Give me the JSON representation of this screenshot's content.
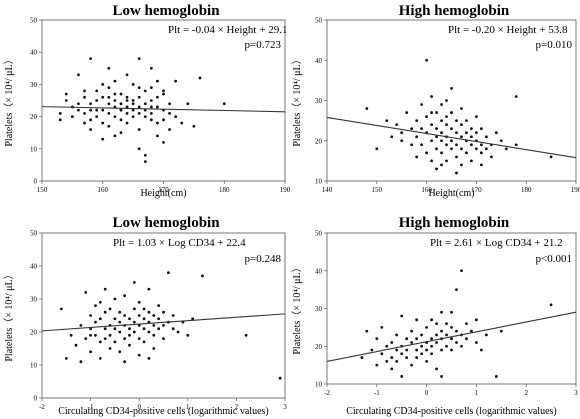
{
  "chart_data": [
    {
      "type": "scatter",
      "title": "Low hemoglobin",
      "xlabel": "Height(cm)",
      "ylabel": "Platelets（× 10⁴/ μL）",
      "xlim": [
        150,
        190
      ],
      "ylim": [
        0,
        50
      ],
      "xticks": [
        150,
        160,
        170,
        180,
        190
      ],
      "yticks": [
        0,
        10,
        20,
        30,
        40,
        50
      ],
      "equation": "Plt = -0.04 × Height + 29.1",
      "pvalue": "p=0.723",
      "regression": {
        "slope": -0.04,
        "intercept": 29.1
      },
      "points": [
        [
          153,
          19
        ],
        [
          153,
          21
        ],
        [
          154,
          27
        ],
        [
          154,
          25
        ],
        [
          155,
          23
        ],
        [
          155,
          20
        ],
        [
          156,
          22
        ],
        [
          156,
          24
        ],
        [
          156,
          33
        ],
        [
          157,
          28
        ],
        [
          157,
          21
        ],
        [
          157,
          26
        ],
        [
          158,
          38
        ],
        [
          158,
          24
        ],
        [
          158,
          19
        ],
        [
          158,
          16
        ],
        [
          159,
          25
        ],
        [
          159,
          22
        ],
        [
          159,
          20
        ],
        [
          159,
          28
        ],
        [
          160,
          30
        ],
        [
          160,
          22
        ],
        [
          160,
          18
        ],
        [
          160,
          13
        ],
        [
          161,
          24
        ],
        [
          161,
          21
        ],
        [
          161,
          26
        ],
        [
          161,
          17
        ],
        [
          161,
          29
        ],
        [
          162,
          23
        ],
        [
          162,
          20
        ],
        [
          162,
          25
        ],
        [
          162,
          31
        ],
        [
          162,
          14
        ],
        [
          163,
          22
        ],
        [
          163,
          19
        ],
        [
          163,
          27
        ],
        [
          163,
          24
        ],
        [
          163,
          15
        ],
        [
          164,
          21
        ],
        [
          164,
          26
        ],
        [
          164,
          23
        ],
        [
          164,
          18
        ],
        [
          164,
          33
        ],
        [
          165,
          25
        ],
        [
          165,
          22
        ],
        [
          165,
          20
        ],
        [
          165,
          30
        ],
        [
          165,
          24
        ],
        [
          166,
          38
        ],
        [
          166,
          23
        ],
        [
          166,
          21
        ],
        [
          166,
          26
        ],
        [
          166,
          16
        ],
        [
          166,
          10
        ],
        [
          167,
          24
        ],
        [
          167,
          20
        ],
        [
          167,
          28
        ],
        [
          167,
          22
        ],
        [
          167,
          8
        ],
        [
          167,
          6
        ],
        [
          168,
          25
        ],
        [
          168,
          21
        ],
        [
          168,
          19
        ],
        [
          168,
          29
        ],
        [
          168,
          35
        ],
        [
          169,
          23
        ],
        [
          169,
          18
        ],
        [
          169,
          26
        ],
        [
          169,
          14
        ],
        [
          170,
          22
        ],
        [
          170,
          12
        ],
        [
          170,
          27
        ],
        [
          170,
          19
        ],
        [
          171,
          21
        ],
        [
          171,
          24
        ],
        [
          171,
          16
        ],
        [
          172,
          31
        ],
        [
          172,
          20
        ],
        [
          173,
          18
        ],
        [
          174,
          24
        ],
        [
          175,
          17
        ],
        [
          176,
          32
        ],
        [
          180,
          24
        ],
        [
          161,
          35
        ],
        [
          163,
          22
        ],
        [
          164,
          25
        ],
        [
          162,
          27
        ],
        [
          166,
          29
        ],
        [
          168,
          23
        ],
        [
          169,
          31
        ],
        [
          170,
          28
        ],
        [
          160,
          26
        ],
        [
          158,
          22
        ],
        [
          157,
          18
        ]
      ]
    },
    {
      "type": "scatter",
      "title": "High hemoglobin",
      "xlabel": "Height(cm)",
      "ylabel": "Platelets（× 10⁴/ μL）",
      "xlim": [
        140,
        190
      ],
      "ylim": [
        10,
        50
      ],
      "xticks": [
        140,
        150,
        160,
        170,
        180,
        190
      ],
      "yticks": [
        10,
        20,
        30,
        40,
        50
      ],
      "equation": "Plt = -0.20 × Height + 53.8",
      "pvalue": "p=0.010",
      "regression": {
        "slope": -0.2,
        "intercept": 53.8
      },
      "points": [
        [
          148,
          28
        ],
        [
          150,
          18
        ],
        [
          152,
          25
        ],
        [
          153,
          21
        ],
        [
          154,
          24
        ],
        [
          155,
          22
        ],
        [
          155,
          20
        ],
        [
          156,
          27
        ],
        [
          157,
          23
        ],
        [
          157,
          19
        ],
        [
          158,
          25
        ],
        [
          158,
          21
        ],
        [
          158,
          16
        ],
        [
          159,
          29
        ],
        [
          159,
          23
        ],
        [
          159,
          19
        ],
        [
          160,
          26
        ],
        [
          160,
          22
        ],
        [
          160,
          40
        ],
        [
          160,
          17
        ],
        [
          161,
          24
        ],
        [
          161,
          20
        ],
        [
          161,
          31
        ],
        [
          161,
          15
        ],
        [
          162,
          23
        ],
        [
          162,
          21
        ],
        [
          162,
          27
        ],
        [
          162,
          18
        ],
        [
          162,
          13
        ],
        [
          163,
          25
        ],
        [
          163,
          22
        ],
        [
          163,
          20
        ],
        [
          163,
          17
        ],
        [
          163,
          29
        ],
        [
          164,
          24
        ],
        [
          164,
          21
        ],
        [
          164,
          19
        ],
        [
          164,
          26
        ],
        [
          164,
          15
        ],
        [
          165,
          23
        ],
        [
          165,
          20
        ],
        [
          165,
          33
        ],
        [
          165,
          18
        ],
        [
          165,
          27
        ],
        [
          166,
          22
        ],
        [
          166,
          25
        ],
        [
          166,
          19
        ],
        [
          166,
          16
        ],
        [
          166,
          12
        ],
        [
          167,
          21
        ],
        [
          167,
          24
        ],
        [
          167,
          18
        ],
        [
          167,
          28
        ],
        [
          167,
          14
        ],
        [
          168,
          22
        ],
        [
          168,
          20
        ],
        [
          168,
          17
        ],
        [
          168,
          25
        ],
        [
          169,
          21
        ],
        [
          169,
          19
        ],
        [
          169,
          23
        ],
        [
          169,
          15
        ],
        [
          170,
          22
        ],
        [
          170,
          18
        ],
        [
          170,
          20
        ],
        [
          170,
          26
        ],
        [
          171,
          19
        ],
        [
          171,
          17
        ],
        [
          171,
          23
        ],
        [
          171,
          14
        ],
        [
          172,
          21
        ],
        [
          172,
          18
        ],
        [
          173,
          19
        ],
        [
          173,
          16
        ],
        [
          174,
          22
        ],
        [
          175,
          20
        ],
        [
          176,
          18
        ],
        [
          178,
          19
        ],
        [
          178,
          31
        ],
        [
          185,
          16
        ],
        [
          164,
          30
        ],
        [
          163,
          14
        ],
        [
          161,
          27
        ]
      ]
    },
    {
      "type": "scatter",
      "title": "Low hemoglobin",
      "xlabel": "Circulating CD34-positive cells (logarithmic values)",
      "ylabel": "Platelets（× 10⁴/ μL）",
      "xlim": [
        -2,
        3
      ],
      "ylim": [
        0,
        50
      ],
      "xticks": [
        -2,
        -1,
        0,
        1,
        2,
        3
      ],
      "yticks": [
        0,
        10,
        20,
        30,
        40,
        50
      ],
      "equation": "Plt = 1.03 × Log CD34 + 22.4",
      "pvalue": "p=0.248",
      "regression": {
        "slope": 1.03,
        "intercept": 22.4
      },
      "points": [
        [
          -1.6,
          27
        ],
        [
          -1.5,
          12
        ],
        [
          -1.4,
          19
        ],
        [
          -1.3,
          16
        ],
        [
          -1.2,
          22
        ],
        [
          -1.2,
          11
        ],
        [
          -1.1,
          32
        ],
        [
          -1.1,
          18
        ],
        [
          -1.0,
          25
        ],
        [
          -1.0,
          21
        ],
        [
          -1.0,
          14
        ],
        [
          -0.9,
          28
        ],
        [
          -0.9,
          19
        ],
        [
          -0.9,
          23
        ],
        [
          -0.8,
          17
        ],
        [
          -0.8,
          24
        ],
        [
          -0.8,
          12
        ],
        [
          -0.7,
          21
        ],
        [
          -0.7,
          26
        ],
        [
          -0.7,
          18
        ],
        [
          -0.7,
          33
        ],
        [
          -0.6,
          22
        ],
        [
          -0.6,
          19
        ],
        [
          -0.6,
          15
        ],
        [
          -0.6,
          27
        ],
        [
          -0.5,
          24
        ],
        [
          -0.5,
          21
        ],
        [
          -0.5,
          17
        ],
        [
          -0.5,
          30
        ],
        [
          -0.4,
          23
        ],
        [
          -0.4,
          20
        ],
        [
          -0.4,
          26
        ],
        [
          -0.4,
          14
        ],
        [
          -0.3,
          22
        ],
        [
          -0.3,
          25
        ],
        [
          -0.3,
          18
        ],
        [
          -0.3,
          31
        ],
        [
          -0.2,
          21
        ],
        [
          -0.2,
          24
        ],
        [
          -0.2,
          19
        ],
        [
          -0.2,
          16
        ],
        [
          -0.1,
          23
        ],
        [
          -0.1,
          27
        ],
        [
          -0.1,
          20
        ],
        [
          -0.1,
          35
        ],
        [
          0.0,
          22
        ],
        [
          0.0,
          25
        ],
        [
          0.0,
          18
        ],
        [
          0.0,
          29
        ],
        [
          0.0,
          13
        ],
        [
          0.1,
          24
        ],
        [
          0.1,
          21
        ],
        [
          0.1,
          27
        ],
        [
          0.1,
          17
        ],
        [
          0.2,
          23
        ],
        [
          0.2,
          20
        ],
        [
          0.2,
          26
        ],
        [
          0.2,
          33
        ],
        [
          0.3,
          22
        ],
        [
          0.3,
          25
        ],
        [
          0.3,
          19
        ],
        [
          0.3,
          15
        ],
        [
          0.4,
          24
        ],
        [
          0.4,
          21
        ],
        [
          0.4,
          28
        ],
        [
          0.5,
          22
        ],
        [
          0.5,
          18
        ],
        [
          0.5,
          26
        ],
        [
          0.6,
          23
        ],
        [
          0.6,
          38
        ],
        [
          0.7,
          21
        ],
        [
          0.7,
          25
        ],
        [
          0.8,
          20
        ],
        [
          0.9,
          23
        ],
        [
          1.0,
          19
        ],
        [
          1.1,
          24
        ],
        [
          1.3,
          37
        ],
        [
          2.2,
          19
        ],
        [
          2.9,
          6
        ],
        [
          -0.8,
          29
        ],
        [
          -0.3,
          11
        ],
        [
          0.2,
          12
        ],
        [
          -1.0,
          19
        ]
      ]
    },
    {
      "type": "scatter",
      "title": "High hemoglobin",
      "xlabel": "Circulating CD34-positive cells (logarithmic values)",
      "ylabel": "Platelets（× 10⁴/ μL）",
      "xlim": [
        -2,
        3
      ],
      "ylim": [
        10,
        50
      ],
      "xticks": [
        -2,
        -1,
        0,
        1,
        2,
        3
      ],
      "yticks": [
        10,
        20,
        30,
        40,
        50
      ],
      "equation": "Plt = 2.61 × Log CD34 + 21.2",
      "pvalue": "p<0.001",
      "regression": {
        "slope": 2.61,
        "intercept": 21.2
      },
      "points": [
        [
          -1.3,
          17
        ],
        [
          -1.2,
          24
        ],
        [
          -1.1,
          19
        ],
        [
          -1.0,
          22
        ],
        [
          -1.0,
          15
        ],
        [
          -0.9,
          18
        ],
        [
          -0.9,
          25
        ],
        [
          -0.8,
          20
        ],
        [
          -0.8,
          16
        ],
        [
          -0.7,
          21
        ],
        [
          -0.7,
          17
        ],
        [
          -0.7,
          14
        ],
        [
          -0.6,
          19
        ],
        [
          -0.6,
          23
        ],
        [
          -0.6,
          16
        ],
        [
          -0.5,
          20
        ],
        [
          -0.5,
          18
        ],
        [
          -0.5,
          28
        ],
        [
          -0.4,
          22
        ],
        [
          -0.4,
          17
        ],
        [
          -0.4,
          19
        ],
        [
          -0.3,
          21
        ],
        [
          -0.3,
          15
        ],
        [
          -0.3,
          24
        ],
        [
          -0.2,
          19
        ],
        [
          -0.2,
          22
        ],
        [
          -0.2,
          17
        ],
        [
          -0.2,
          27
        ],
        [
          -0.1,
          20
        ],
        [
          -0.1,
          23
        ],
        [
          -0.1,
          18
        ],
        [
          0.0,
          21
        ],
        [
          0.0,
          19
        ],
        [
          0.0,
          25
        ],
        [
          0.0,
          16
        ],
        [
          0.1,
          22
        ],
        [
          0.1,
          20
        ],
        [
          0.1,
          27
        ],
        [
          0.1,
          18
        ],
        [
          0.2,
          23
        ],
        [
          0.2,
          21
        ],
        [
          0.2,
          26
        ],
        [
          0.2,
          14
        ],
        [
          0.3,
          22
        ],
        [
          0.3,
          24
        ],
        [
          0.3,
          19
        ],
        [
          0.3,
          29
        ],
        [
          0.4,
          23
        ],
        [
          0.4,
          20
        ],
        [
          0.4,
          26
        ],
        [
          0.5,
          22
        ],
        [
          0.5,
          25
        ],
        [
          0.5,
          19
        ],
        [
          0.6,
          24
        ],
        [
          0.6,
          21
        ],
        [
          0.6,
          35
        ],
        [
          0.7,
          23
        ],
        [
          0.7,
          40
        ],
        [
          0.7,
          20
        ],
        [
          0.8,
          26
        ],
        [
          0.8,
          22
        ],
        [
          0.9,
          24
        ],
        [
          1.0,
          21
        ],
        [
          1.0,
          27
        ],
        [
          1.1,
          19
        ],
        [
          1.2,
          23
        ],
        [
          1.4,
          12
        ],
        [
          1.5,
          24
        ],
        [
          2.5,
          31
        ],
        [
          -0.5,
          12
        ],
        [
          0.3,
          12
        ],
        [
          0.5,
          29
        ]
      ]
    }
  ]
}
